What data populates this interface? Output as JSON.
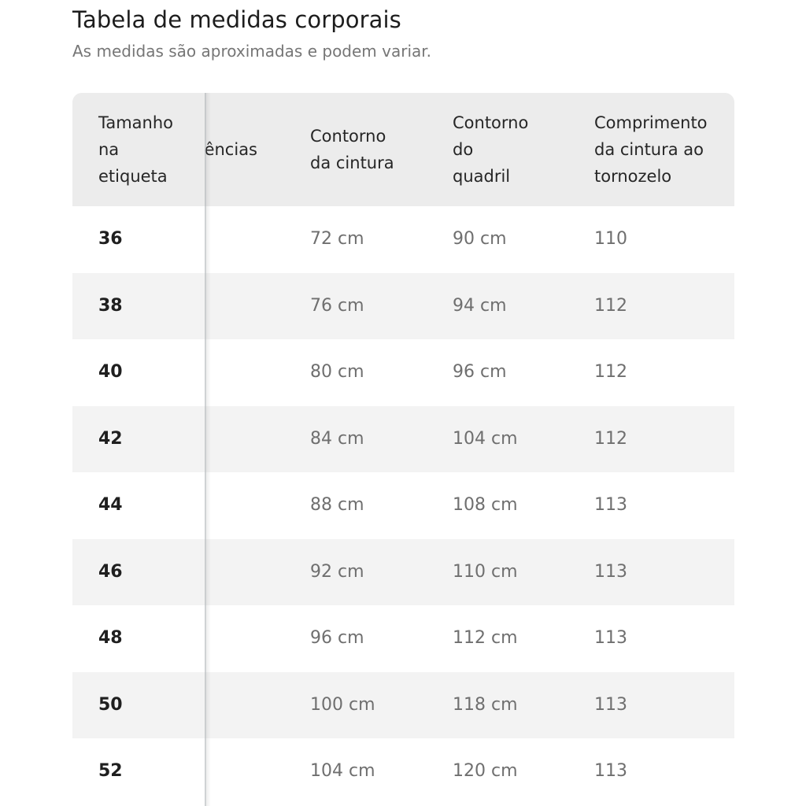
{
  "header": {
    "title": "Tabela de medidas corporais",
    "subtitle": "As medidas são aproximadas e podem variar."
  },
  "table": {
    "columns": [
      "Tamanho\nna\netiqueta",
      "ências",
      "Contorno\nda cintura",
      "Contorno\ndo\nquadril",
      "Comprimento\nda cintura ao\ntornozelo"
    ],
    "rows": [
      {
        "size": "36",
        "waist": "72 cm",
        "hip": "90 cm",
        "length": "110"
      },
      {
        "size": "38",
        "waist": "76 cm",
        "hip": "94 cm",
        "length": "112"
      },
      {
        "size": "40",
        "waist": "80 cm",
        "hip": "96 cm",
        "length": "112"
      },
      {
        "size": "42",
        "waist": "84 cm",
        "hip": "104 cm",
        "length": "112"
      },
      {
        "size": "44",
        "waist": "88 cm",
        "hip": "108 cm",
        "length": "113"
      },
      {
        "size": "46",
        "waist": "92 cm",
        "hip": "110 cm",
        "length": "113"
      },
      {
        "size": "48",
        "waist": "96 cm",
        "hip": "112 cm",
        "length": "113"
      },
      {
        "size": "50",
        "waist": "100 cm",
        "hip": "118 cm",
        "length": "113"
      },
      {
        "size": "52",
        "waist": "104 cm",
        "hip": "120 cm",
        "length": "113"
      }
    ]
  }
}
